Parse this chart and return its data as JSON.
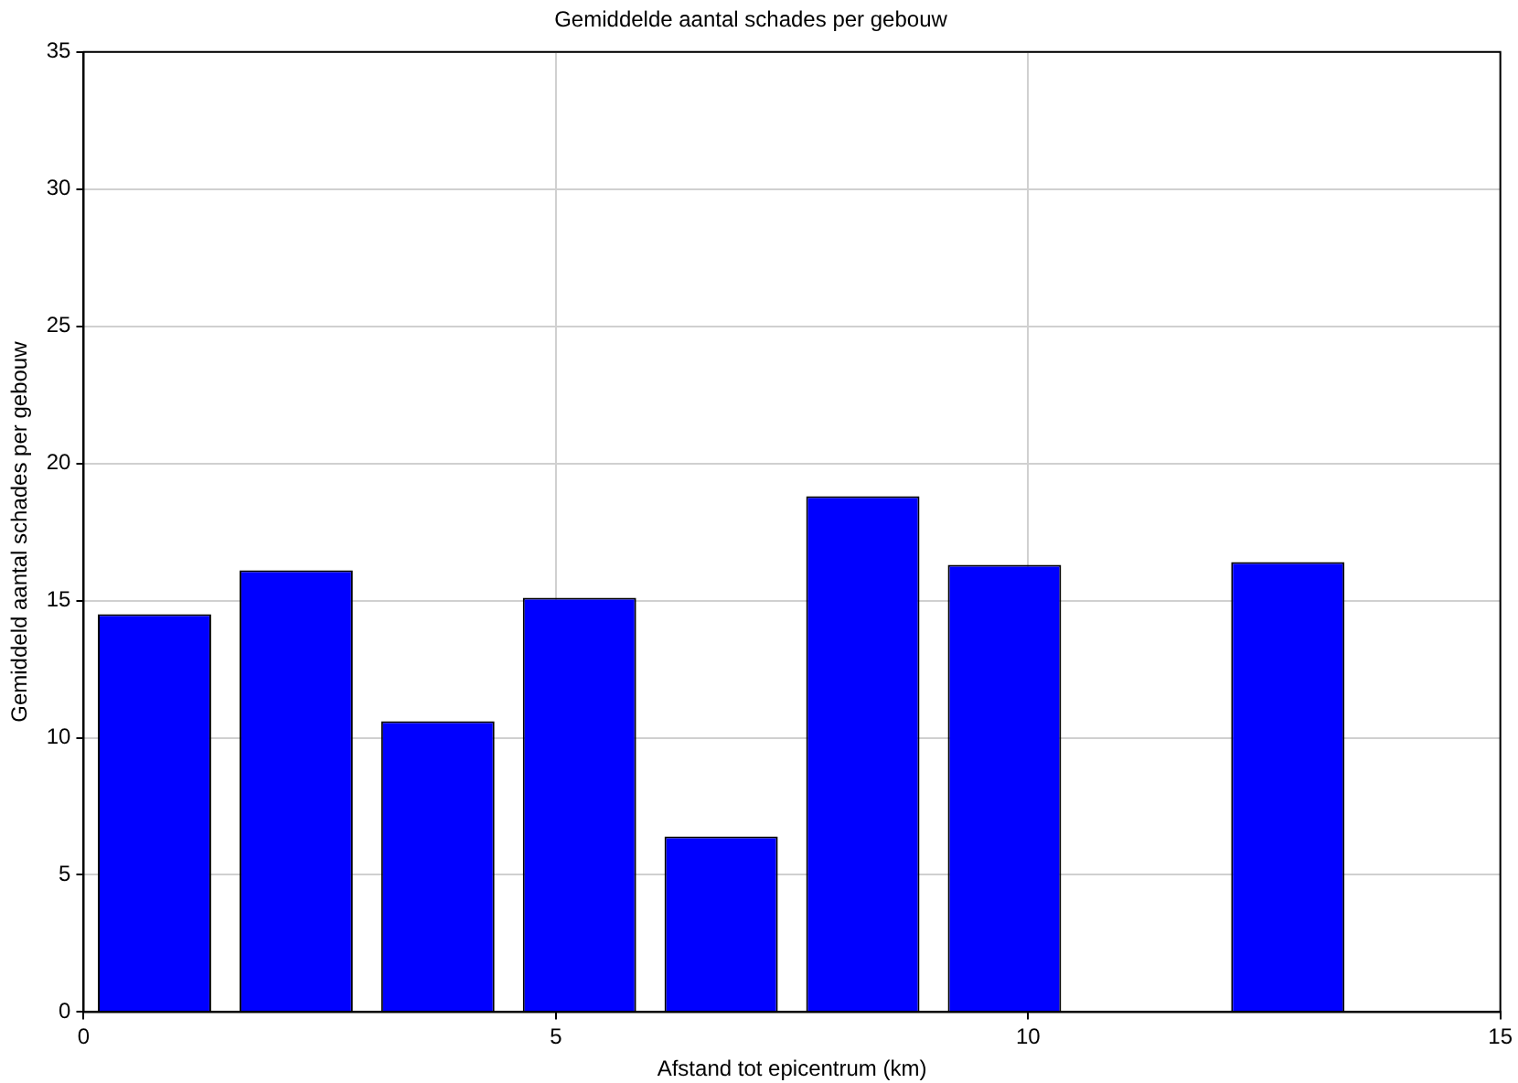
{
  "chart_data": {
    "type": "bar",
    "title": "Gemiddelde aantal schades per gebouw",
    "xlabel": "Afstand tot epicentrum (km)",
    "ylabel": "Gemiddeld aantal schades per gebouw",
    "x": [
      0.75,
      2.25,
      3.75,
      5.25,
      6.75,
      8.25,
      9.75,
      12.75
    ],
    "values": [
      14.5,
      16.1,
      10.6,
      15.1,
      6.4,
      18.8,
      16.3,
      16.4
    ],
    "color": "#0000ff",
    "xlim": [
      0,
      15
    ],
    "xticks": [
      0,
      5,
      10,
      15
    ],
    "ylim": [
      0,
      35
    ],
    "yticks": [
      0,
      5,
      10,
      15,
      20,
      25,
      30,
      35
    ],
    "grid": true,
    "legend": false
  }
}
